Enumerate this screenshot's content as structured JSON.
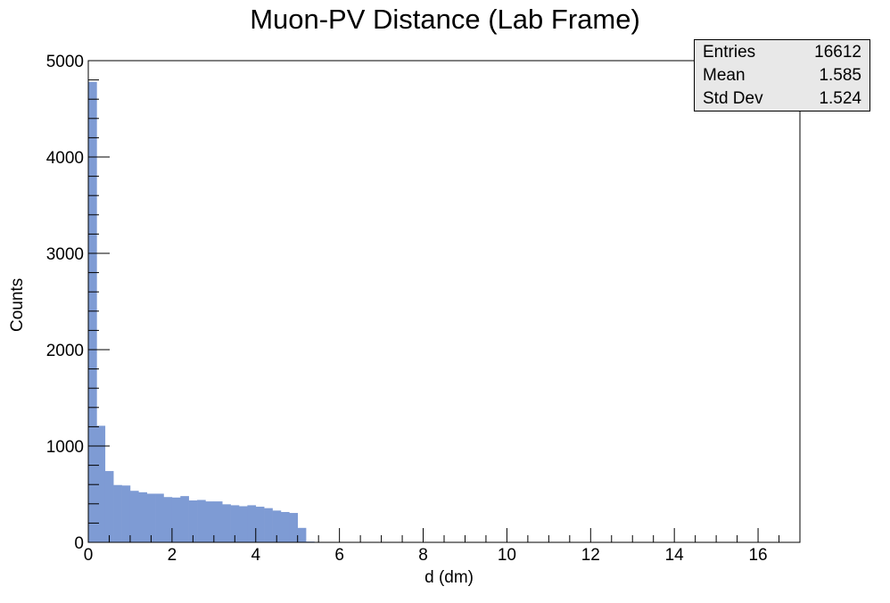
{
  "chart_data": {
    "type": "bar",
    "title": "Muon-PV Distance (Lab Frame)",
    "xlabel": "d (dm)",
    "ylabel": "Counts",
    "xlim": [
      0,
      17
    ],
    "ylim": [
      0,
      5000
    ],
    "x_ticks": [
      "0",
      "2",
      "4",
      "6",
      "8",
      "10",
      "12",
      "14",
      "16"
    ],
    "y_ticks": [
      "0",
      "1000",
      "2000",
      "3000",
      "4000",
      "5000"
    ],
    "bin_width": 0.2,
    "bin_start": 0,
    "values": [
      4780,
      1210,
      740,
      595,
      590,
      535,
      520,
      505,
      505,
      470,
      465,
      480,
      435,
      440,
      425,
      425,
      395,
      385,
      375,
      385,
      370,
      355,
      330,
      315,
      305,
      150,
      8,
      0
    ],
    "fill_color": "#7e9bd4",
    "legend": "none",
    "grid": false
  },
  "stats_box": {
    "rows": [
      {
        "label": "Entries",
        "value": "16612"
      },
      {
        "label": "Mean",
        "value": "1.585"
      },
      {
        "label": "Std Dev",
        "value": "1.524"
      }
    ]
  }
}
